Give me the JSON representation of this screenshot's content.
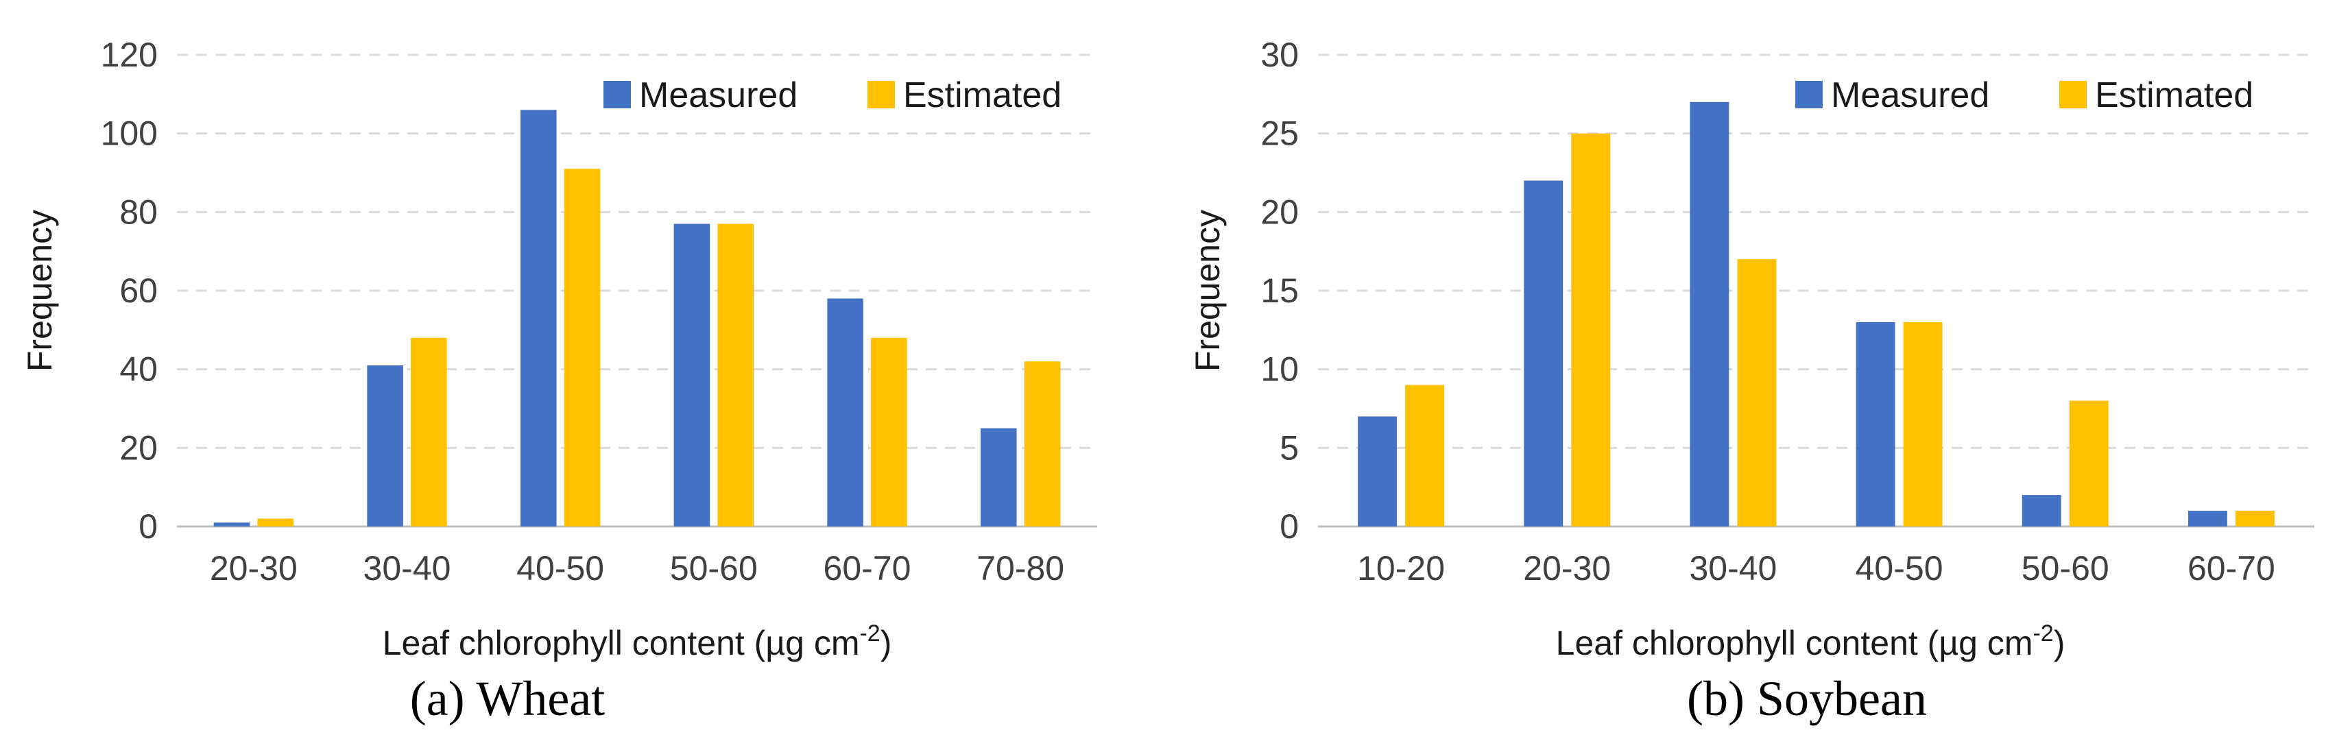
{
  "colors": {
    "measured": "#4472C4",
    "estimated": "#FFC000",
    "grid": "#D9D9D9",
    "axis": "#BFBFBF"
  },
  "chart_data": [
    {
      "type": "bar",
      "title": "",
      "caption": "(a) Wheat",
      "xlabel": "Leaf chlorophyll content (µg cm",
      "xlabel_sup": "-2",
      "xlabel_end": ")",
      "ylabel": "Frequency",
      "ylim": [
        0,
        120
      ],
      "yticks": [
        "0",
        "20",
        "40",
        "60",
        "80",
        "100",
        "120"
      ],
      "categories": [
        "20-30",
        "30-40",
        "40-50",
        "50-60",
        "60-70",
        "70-80"
      ],
      "series": [
        {
          "name": "Measured",
          "values": [
            1,
            41,
            106,
            77,
            58,
            25
          ]
        },
        {
          "name": "Estimated",
          "values": [
            2,
            48,
            91,
            77,
            48,
            42
          ]
        }
      ],
      "legend": "top-right",
      "grid": true
    },
    {
      "type": "bar",
      "title": "",
      "caption": "(b) Soybean",
      "xlabel": "Leaf chlorophyll content (µg cm",
      "xlabel_sup": "-2",
      "xlabel_end": ")",
      "ylabel": "Frequency",
      "ylim": [
        0,
        30
      ],
      "yticks": [
        "0",
        "5",
        "10",
        "15",
        "20",
        "25",
        "30"
      ],
      "categories": [
        "10-20",
        "20-30",
        "30-40",
        "40-50",
        "50-60",
        "60-70"
      ],
      "series": [
        {
          "name": "Measured",
          "values": [
            7,
            22,
            27,
            13,
            2,
            1
          ]
        },
        {
          "name": "Estimated",
          "values": [
            9,
            25,
            17,
            13,
            8,
            1
          ]
        }
      ],
      "legend": "top-right",
      "grid": true
    }
  ]
}
